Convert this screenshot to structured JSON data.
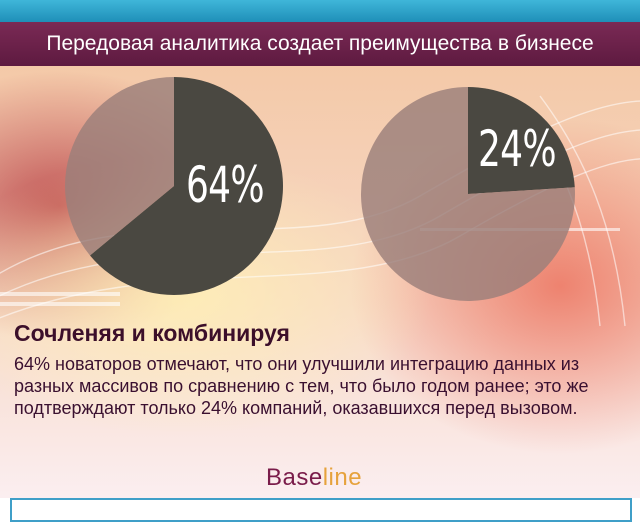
{
  "header": {
    "title": "Передовая аналитика создает преимущества в бизнесе"
  },
  "chart_data": [
    {
      "type": "pie",
      "values": [
        64,
        36
      ],
      "labels": [
        "64%",
        ""
      ],
      "colors": [
        "#4a4841",
        "#9b7f7a"
      ],
      "title": "",
      "xlabel": "",
      "ylabel": ""
    },
    {
      "type": "pie",
      "values": [
        24,
        76
      ],
      "labels": [
        "24%",
        ""
      ],
      "colors": [
        "#4a4841",
        "#9b7f7a"
      ],
      "title": "",
      "xlabel": "",
      "ylabel": ""
    }
  ],
  "content": {
    "subtitle": "Сочленяя и комбинируя",
    "body": "64% новаторов отмечают, что они улучшили интеграцию данных из разных массивов по сравнению с тем, что было годом ранее; это же подтверждают только 24% компаний, оказавшихся перед вызовом."
  },
  "logo": {
    "part1": "Base",
    "part2": "line"
  },
  "colors": {
    "title_bar": "#6b2249",
    "top_stripe": "#2aa0c8",
    "pie_dark": "#4a4841",
    "pie_light": "#9b7f7a"
  }
}
